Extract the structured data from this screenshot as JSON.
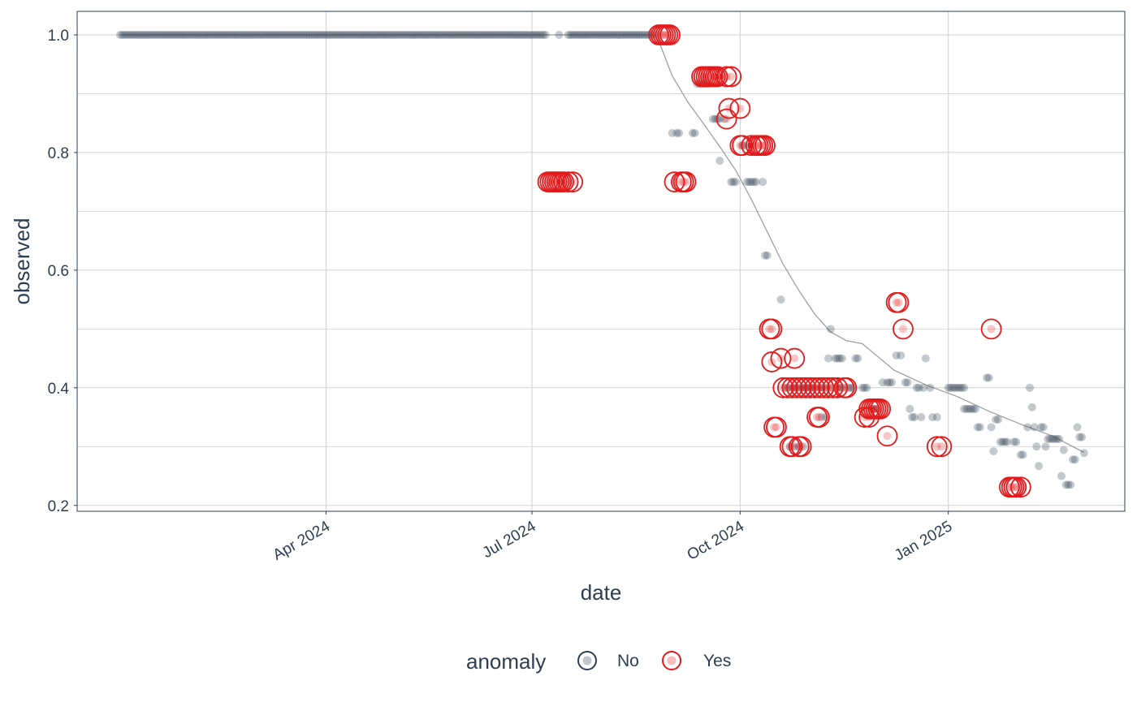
{
  "chart_data": {
    "type": "scatter",
    "xlabel": "date",
    "ylabel": "observed",
    "x_ticks": [
      "2024-04-01",
      "2024-07-01",
      "2024-10-01",
      "2025-01-01"
    ],
    "x_tick_labels": [
      "Apr 2024",
      "Jul 2024",
      "Oct 2024",
      "Jan 2025"
    ],
    "y_ticks": [
      0.2,
      0.4,
      0.6,
      0.8,
      1.0
    ],
    "y_tick_labels": [
      "0.2",
      "0.4",
      "0.6",
      "0.8",
      "1.0"
    ],
    "xlim": [
      "2023-12-13",
      "2025-03-20"
    ],
    "ylim": [
      0.19,
      1.04
    ],
    "grid": true,
    "legend_position": "bottom",
    "legend": {
      "title": "anomaly",
      "items": [
        {
          "label": "No",
          "color": "#2c3e50"
        },
        {
          "label": "Yes",
          "color": "#e31a1c"
        }
      ]
    },
    "colors": {
      "normal": "#2c3e50",
      "anomaly": "#e31a1c",
      "trend": "#a0a0a0",
      "grid": "#d0d0d0"
    },
    "series": [
      {
        "name": "No",
        "ranges": [
          {
            "start": "2024-01-01",
            "end": "2024-07-07",
            "y": 1.0
          },
          {
            "start": "2024-07-18",
            "end": "2024-08-24",
            "y": 1.0
          }
        ],
        "points": [
          [
            "2024-07-13",
            1.0
          ],
          [
            "2024-07-17",
            1.0
          ],
          [
            "2024-09-01",
            0.833
          ],
          [
            "2024-09-03",
            0.833
          ],
          [
            "2024-09-04",
            0.833
          ],
          [
            "2024-09-10",
            0.833
          ],
          [
            "2024-09-11",
            0.833
          ],
          [
            "2024-09-12",
            0.917
          ],
          [
            "2024-09-13",
            0.917
          ],
          [
            "2024-09-14",
            0.917
          ],
          [
            "2024-09-15",
            0.917
          ],
          [
            "2024-09-16",
            0.917
          ],
          [
            "2024-09-17",
            0.917
          ],
          [
            "2024-09-19",
            0.857
          ],
          [
            "2024-09-20",
            0.857
          ],
          [
            "2024-09-21",
            0.857
          ],
          [
            "2024-09-22",
            0.857
          ],
          [
            "2024-09-24",
            0.857
          ],
          [
            "2024-09-22",
            0.786
          ],
          [
            "2024-09-27",
            0.75
          ],
          [
            "2024-09-28",
            0.75
          ],
          [
            "2024-09-29",
            0.75
          ],
          [
            "2024-10-02",
            0.812
          ],
          [
            "2024-10-03",
            0.812
          ],
          [
            "2024-10-04",
            0.75
          ],
          [
            "2024-10-05",
            0.75
          ],
          [
            "2024-10-06",
            0.75
          ],
          [
            "2024-10-07",
            0.75
          ],
          [
            "2024-10-08",
            0.75
          ],
          [
            "2024-10-11",
            0.75
          ],
          [
            "2024-10-12",
            0.625
          ],
          [
            "2024-10-13",
            0.625
          ],
          [
            "2024-10-19",
            0.55
          ],
          [
            "2024-10-21",
            0.4
          ],
          [
            "2024-10-22",
            0.4
          ],
          [
            "2024-10-24",
            0.4
          ],
          [
            "2024-10-25",
            0.4
          ],
          [
            "2024-10-26",
            0.4
          ],
          [
            "2024-10-29",
            0.4
          ],
          [
            "2024-10-30",
            0.4
          ],
          [
            "2024-10-31",
            0.4
          ],
          [
            "2024-11-02",
            0.4
          ],
          [
            "2024-11-05",
            0.4
          ],
          [
            "2024-11-06",
            0.4
          ],
          [
            "2024-11-08",
            0.4
          ],
          [
            "2024-11-10",
            0.4
          ],
          [
            "2024-11-13",
            0.4
          ],
          [
            "2024-11-14",
            0.4
          ],
          [
            "2024-11-15",
            0.4
          ],
          [
            "2024-11-18",
            0.4
          ],
          [
            "2024-11-19",
            0.4
          ],
          [
            "2024-11-20",
            0.4
          ],
          [
            "2024-11-24",
            0.4
          ],
          [
            "2024-10-23",
            0.3
          ],
          [
            "2024-10-25",
            0.3
          ],
          [
            "2024-10-27",
            0.3
          ],
          [
            "2024-10-29",
            0.3
          ],
          [
            "2024-10-28",
            0.4
          ],
          [
            "2024-11-01",
            0.4
          ],
          [
            "2024-11-03",
            0.4
          ],
          [
            "2024-11-06",
            0.35
          ],
          [
            "2024-11-08",
            0.35
          ],
          [
            "2024-11-09",
            0.45
          ],
          [
            "2024-11-10",
            0.5
          ],
          [
            "2024-11-12",
            0.45
          ],
          [
            "2024-11-13",
            0.45
          ],
          [
            "2024-11-14",
            0.45
          ],
          [
            "2024-11-15",
            0.45
          ],
          [
            "2024-11-21",
            0.45
          ],
          [
            "2024-11-22",
            0.45
          ],
          [
            "2024-11-25",
            0.4
          ],
          [
            "2024-11-26",
            0.4
          ],
          [
            "2024-11-28",
            0.364
          ],
          [
            "2024-11-29",
            0.364
          ],
          [
            "2024-11-30",
            0.364
          ],
          [
            "2024-12-03",
            0.409
          ],
          [
            "2024-12-05",
            0.409
          ],
          [
            "2024-12-06",
            0.409
          ],
          [
            "2024-12-07",
            0.409
          ],
          [
            "2024-12-09",
            0.455
          ],
          [
            "2024-12-11",
            0.455
          ],
          [
            "2024-12-13",
            0.409
          ],
          [
            "2024-12-14",
            0.409
          ],
          [
            "2024-12-15",
            0.364
          ],
          [
            "2024-12-16",
            0.35
          ],
          [
            "2024-12-17",
            0.35
          ],
          [
            "2024-12-18",
            0.4
          ],
          [
            "2024-12-19",
            0.4
          ],
          [
            "2024-12-20",
            0.35
          ],
          [
            "2024-12-21",
            0.4
          ],
          [
            "2024-12-22",
            0.45
          ],
          [
            "2024-12-24",
            0.4
          ],
          [
            "2024-12-25",
            0.35
          ],
          [
            "2024-12-27",
            0.35
          ],
          [
            "2025-01-01",
            0.4
          ],
          [
            "2025-01-02",
            0.4
          ],
          [
            "2025-01-03",
            0.4
          ],
          [
            "2025-01-04",
            0.4
          ],
          [
            "2025-01-05",
            0.4
          ],
          [
            "2025-01-06",
            0.4
          ],
          [
            "2025-01-07",
            0.4
          ],
          [
            "2025-01-08",
            0.4
          ],
          [
            "2025-01-08",
            0.364
          ],
          [
            "2025-01-09",
            0.364
          ],
          [
            "2025-01-10",
            0.364
          ],
          [
            "2025-01-11",
            0.364
          ],
          [
            "2025-01-12",
            0.364
          ],
          [
            "2025-01-13",
            0.364
          ],
          [
            "2025-01-14",
            0.333
          ],
          [
            "2025-01-15",
            0.333
          ],
          [
            "2025-01-18",
            0.417
          ],
          [
            "2025-01-19",
            0.417
          ],
          [
            "2025-01-20",
            0.333
          ],
          [
            "2025-01-21",
            0.292
          ],
          [
            "2025-01-22",
            0.346
          ],
          [
            "2025-01-23",
            0.346
          ],
          [
            "2025-01-24",
            0.308
          ],
          [
            "2025-01-25",
            0.308
          ],
          [
            "2025-01-26",
            0.308
          ],
          [
            "2025-01-27",
            0.308
          ],
          [
            "2025-01-30",
            0.308
          ],
          [
            "2025-01-31",
            0.308
          ],
          [
            "2025-02-02",
            0.286
          ],
          [
            "2025-02-03",
            0.286
          ],
          [
            "2025-02-05",
            0.333
          ],
          [
            "2025-02-06",
            0.4
          ],
          [
            "2025-02-07",
            0.367
          ],
          [
            "2025-02-08",
            0.333
          ],
          [
            "2025-02-09",
            0.3
          ],
          [
            "2025-02-10",
            0.267
          ],
          [
            "2025-02-11",
            0.333
          ],
          [
            "2025-02-12",
            0.333
          ],
          [
            "2025-02-13",
            0.3
          ],
          [
            "2025-02-14",
            0.313
          ],
          [
            "2025-02-15",
            0.313
          ],
          [
            "2025-02-16",
            0.313
          ],
          [
            "2025-02-17",
            0.313
          ],
          [
            "2025-02-18",
            0.313
          ],
          [
            "2025-02-19",
            0.313
          ],
          [
            "2025-02-20",
            0.25
          ],
          [
            "2025-02-21",
            0.294
          ],
          [
            "2025-02-22",
            0.235
          ],
          [
            "2025-02-23",
            0.235
          ],
          [
            "2025-02-24",
            0.235
          ],
          [
            "2025-02-25",
            0.278
          ],
          [
            "2025-02-26",
            0.278
          ],
          [
            "2025-02-27",
            0.333
          ],
          [
            "2025-02-28",
            0.316
          ],
          [
            "2025-03-01",
            0.316
          ],
          [
            "2025-03-02",
            0.289
          ]
        ]
      },
      {
        "name": "Yes",
        "points": [
          [
            "2024-07-08",
            0.75
          ],
          [
            "2024-07-09",
            0.75
          ],
          [
            "2024-07-10",
            0.75
          ],
          [
            "2024-07-11",
            0.75
          ],
          [
            "2024-07-12",
            0.75
          ],
          [
            "2024-07-13",
            0.75
          ],
          [
            "2024-07-14",
            0.75
          ],
          [
            "2024-07-15",
            0.75
          ],
          [
            "2024-07-17",
            0.75
          ],
          [
            "2024-07-19",
            0.75
          ],
          [
            "2024-08-26",
            1.0
          ],
          [
            "2024-08-27",
            1.0
          ],
          [
            "2024-08-28",
            1.0
          ],
          [
            "2024-08-29",
            1.0
          ],
          [
            "2024-08-30",
            1.0
          ],
          [
            "2024-08-31",
            1.0
          ],
          [
            "2024-09-02",
            0.75
          ],
          [
            "2024-09-05",
            0.75
          ],
          [
            "2024-09-06",
            0.75
          ],
          [
            "2024-09-07",
            0.75
          ],
          [
            "2024-09-14",
            0.929
          ],
          [
            "2024-09-15",
            0.929
          ],
          [
            "2024-09-16",
            0.929
          ],
          [
            "2024-09-17",
            0.929
          ],
          [
            "2024-09-18",
            0.929
          ],
          [
            "2024-09-19",
            0.929
          ],
          [
            "2024-09-20",
            0.929
          ],
          [
            "2024-09-21",
            0.929
          ],
          [
            "2024-09-25",
            0.929
          ],
          [
            "2024-09-27",
            0.929
          ],
          [
            "2024-09-25",
            0.857
          ],
          [
            "2024-09-26",
            0.875
          ],
          [
            "2024-10-01",
            0.875
          ],
          [
            "2024-10-01",
            0.812
          ],
          [
            "2024-10-02",
            0.812
          ],
          [
            "2024-10-06",
            0.812
          ],
          [
            "2024-10-08",
            0.812
          ],
          [
            "2024-10-09",
            0.812
          ],
          [
            "2024-10-10",
            0.812
          ],
          [
            "2024-10-11",
            0.812
          ],
          [
            "2024-10-12",
            0.812
          ],
          [
            "2024-10-14",
            0.5
          ],
          [
            "2024-10-15",
            0.5
          ],
          [
            "2024-10-15",
            0.444
          ],
          [
            "2024-10-19",
            0.45
          ],
          [
            "2024-10-25",
            0.45
          ],
          [
            "2024-10-16",
            0.333
          ],
          [
            "2024-10-17",
            0.333
          ],
          [
            "2024-10-20",
            0.4
          ],
          [
            "2024-10-22",
            0.4
          ],
          [
            "2024-10-24",
            0.4
          ],
          [
            "2024-10-26",
            0.4
          ],
          [
            "2024-10-28",
            0.4
          ],
          [
            "2024-10-30",
            0.4
          ],
          [
            "2024-11-01",
            0.4
          ],
          [
            "2024-11-03",
            0.4
          ],
          [
            "2024-11-05",
            0.4
          ],
          [
            "2024-11-07",
            0.4
          ],
          [
            "2024-11-09",
            0.4
          ],
          [
            "2024-11-11",
            0.4
          ],
          [
            "2024-11-13",
            0.4
          ],
          [
            "2024-11-16",
            0.4
          ],
          [
            "2024-11-17",
            0.4
          ],
          [
            "2024-10-23",
            0.3
          ],
          [
            "2024-10-24",
            0.3
          ],
          [
            "2024-10-27",
            0.3
          ],
          [
            "2024-10-28",
            0.3
          ],
          [
            "2024-11-04",
            0.35
          ],
          [
            "2024-11-05",
            0.35
          ],
          [
            "2024-11-25",
            0.35
          ],
          [
            "2024-11-27",
            0.35
          ],
          [
            "2024-11-27",
            0.364
          ],
          [
            "2024-11-28",
            0.364
          ],
          [
            "2024-11-29",
            0.364
          ],
          [
            "2024-11-30",
            0.364
          ],
          [
            "2024-12-01",
            0.364
          ],
          [
            "2024-12-02",
            0.364
          ],
          [
            "2024-12-05",
            0.318
          ],
          [
            "2024-12-09",
            0.545
          ],
          [
            "2024-12-10",
            0.545
          ],
          [
            "2024-12-12",
            0.5
          ],
          [
            "2024-12-27",
            0.3
          ],
          [
            "2024-12-29",
            0.3
          ],
          [
            "2025-01-20",
            0.5
          ],
          [
            "2025-01-28",
            0.231
          ],
          [
            "2025-01-29",
            0.231
          ],
          [
            "2025-01-30",
            0.231
          ],
          [
            "2025-01-31",
            0.231
          ],
          [
            "2025-02-02",
            0.231
          ]
        ]
      }
    ],
    "trend": [
      [
        "2024-01-01",
        1.0
      ],
      [
        "2024-08-24",
        1.0
      ],
      [
        "2024-08-26",
        0.99
      ],
      [
        "2024-09-01",
        0.93
      ],
      [
        "2024-09-08",
        0.885
      ],
      [
        "2024-09-15",
        0.848
      ],
      [
        "2024-09-22",
        0.81
      ],
      [
        "2024-09-29",
        0.77
      ],
      [
        "2024-10-06",
        0.72
      ],
      [
        "2024-10-13",
        0.665
      ],
      [
        "2024-10-20",
        0.61
      ],
      [
        "2024-10-27",
        0.565
      ],
      [
        "2024-11-03",
        0.525
      ],
      [
        "2024-11-10",
        0.495
      ],
      [
        "2024-11-17",
        0.48
      ],
      [
        "2024-11-24",
        0.475
      ],
      [
        "2024-12-08",
        0.43
      ],
      [
        "2024-12-22",
        0.405
      ],
      [
        "2025-01-05",
        0.385
      ],
      [
        "2025-01-19",
        0.36
      ],
      [
        "2025-02-02",
        0.338
      ],
      [
        "2025-02-16",
        0.318
      ],
      [
        "2025-03-02",
        0.29
      ]
    ]
  }
}
